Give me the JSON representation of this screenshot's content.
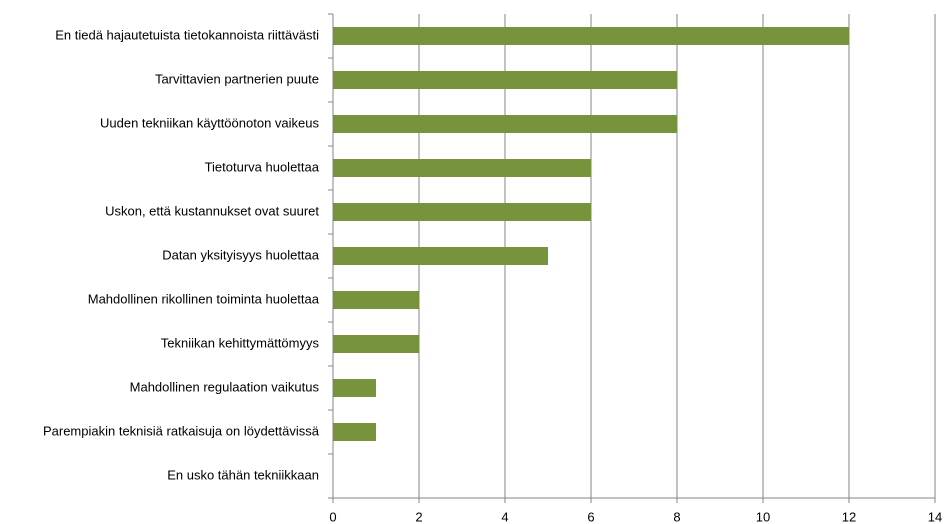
{
  "chart_data": {
    "type": "bar",
    "orientation": "horizontal",
    "categories": [
      "En tiedä hajautetuista tietokannoista riittävästi",
      "Tarvittavien partnerien puute",
      "Uuden tekniikan käyttöönoton vaikeus",
      "Tietoturva huolettaa",
      "Uskon, että kustannukset ovat suuret",
      "Datan yksityisyys huolettaa",
      "Mahdollinen rikollinen toiminta huolettaa",
      "Tekniikan kehittymättömyys",
      "Mahdollinen regulaation vaikutus",
      "Parempiakin teknisiä ratkaisuja on löydettävissä",
      "En usko tähän tekniikkaan"
    ],
    "values": [
      12,
      8,
      8,
      6,
      6,
      5,
      2,
      2,
      1,
      1,
      0
    ],
    "color": "#77933c",
    "xlim": [
      0,
      14
    ],
    "xticks": [
      0,
      2,
      4,
      6,
      8,
      10,
      12,
      14
    ],
    "grid": true
  }
}
